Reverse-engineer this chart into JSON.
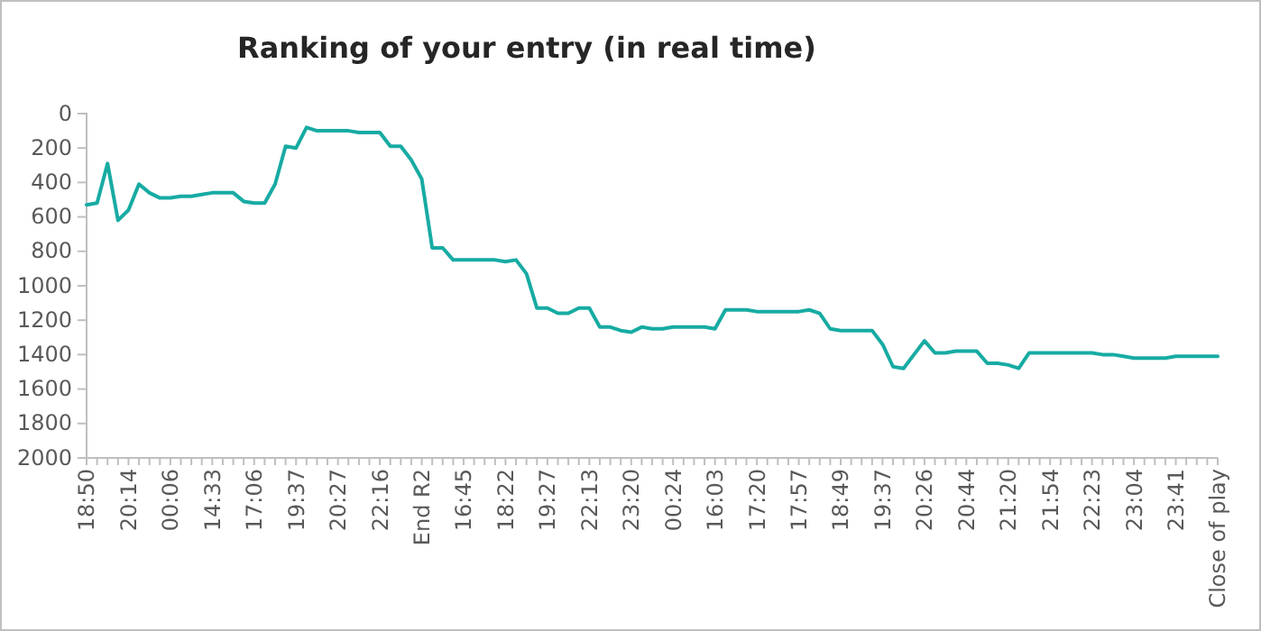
{
  "chart_data": {
    "type": "line",
    "title": "Ranking of your entry (in real time)",
    "categories": [
      "18:50",
      null,
      null,
      null,
      "20:14",
      null,
      null,
      null,
      "00:06",
      null,
      null,
      null,
      "14:33",
      null,
      null,
      null,
      "17:06",
      null,
      null,
      null,
      "19:37",
      null,
      null,
      null,
      "20:27",
      null,
      null,
      null,
      "22:16",
      null,
      null,
      null,
      "End R2",
      null,
      null,
      null,
      "16:45",
      null,
      null,
      null,
      "18:22",
      null,
      null,
      null,
      "19:27",
      null,
      null,
      null,
      "22:13",
      null,
      null,
      null,
      "23:20",
      null,
      null,
      null,
      "00:24",
      null,
      null,
      null,
      "16:03",
      null,
      null,
      null,
      "17:20",
      null,
      null,
      null,
      "17:57",
      null,
      null,
      null,
      "18:49",
      null,
      null,
      null,
      "19:37",
      null,
      null,
      null,
      "20:26",
      null,
      null,
      null,
      "20:44",
      null,
      null,
      null,
      "21:20",
      null,
      null,
      null,
      "21:54",
      null,
      null,
      null,
      "22:23",
      null,
      null,
      null,
      "23:04",
      null,
      null,
      null,
      "23:41",
      null,
      null,
      null,
      "Close of play"
    ],
    "series": [
      {
        "color": "#17aba3",
        "values": [
          530,
          520,
          290,
          620,
          560,
          410,
          460,
          490,
          490,
          480,
          480,
          470,
          460,
          460,
          460,
          510,
          520,
          520,
          410,
          190,
          200,
          80,
          100,
          100,
          100,
          100,
          110,
          110,
          110,
          190,
          190,
          270,
          380,
          780,
          780,
          850,
          850,
          850,
          850,
          850,
          860,
          850,
          930,
          1130,
          1130,
          1160,
          1160,
          1130,
          1130,
          1240,
          1240,
          1260,
          1270,
          1240,
          1250,
          1250,
          1240,
          1240,
          1240,
          1240,
          1250,
          1140,
          1140,
          1140,
          1150,
          1150,
          1150,
          1150,
          1150,
          1140,
          1160,
          1250,
          1260,
          1260,
          1260,
          1260,
          1340,
          1470,
          1480,
          1400,
          1320,
          1390,
          1390,
          1380,
          1380,
          1380,
          1450,
          1450,
          1460,
          1480,
          1390,
          1390,
          1390,
          1390,
          1390,
          1390,
          1390,
          1400,
          1400,
          1410,
          1420,
          1420,
          1420,
          1420,
          1410,
          1410,
          1410,
          1410,
          1410
        ]
      }
    ],
    "ylim": [
      2000,
      0
    ],
    "yticks": [
      0,
      200,
      400,
      600,
      800,
      1000,
      1200,
      1400,
      1600,
      1800,
      2000
    ],
    "line_style": "solid"
  }
}
